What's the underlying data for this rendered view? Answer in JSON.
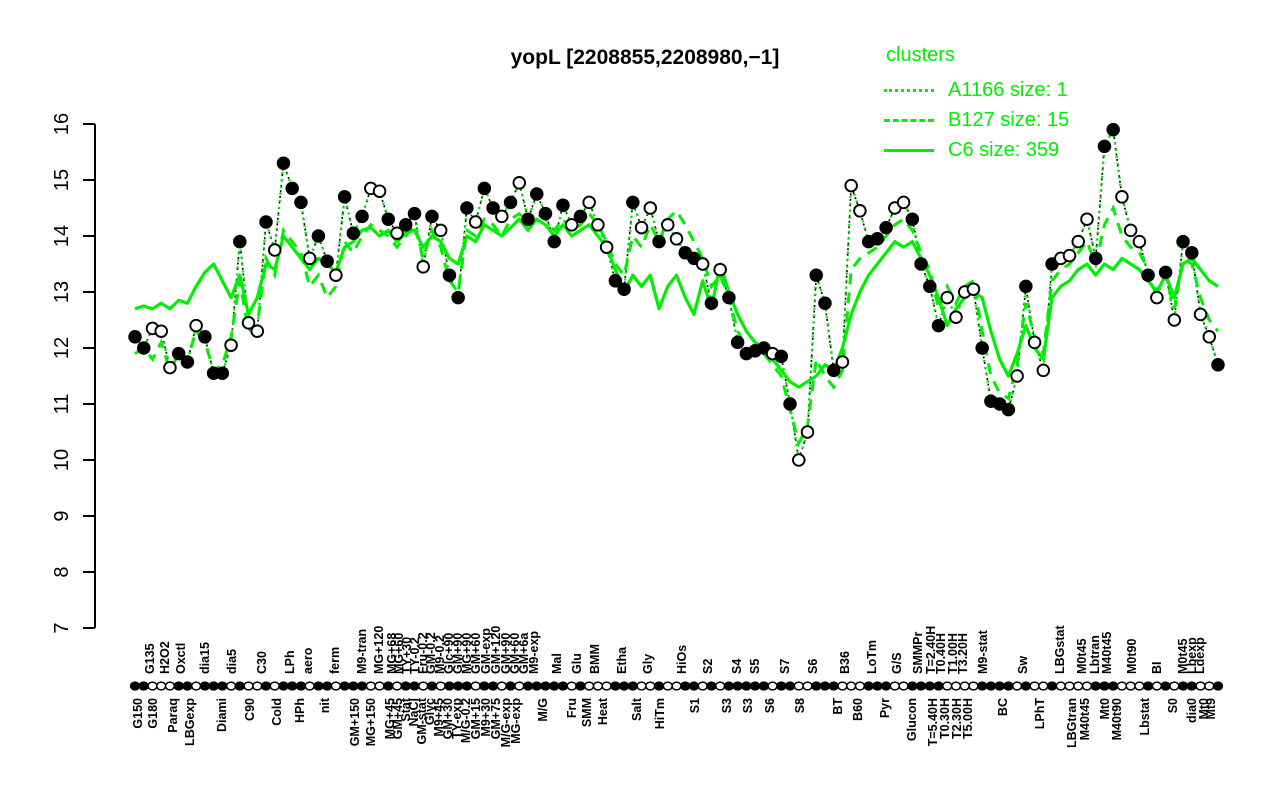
{
  "title": "yopL [2208855,2208980,−1]",
  "colors": {
    "cluster_green": "#00EE00",
    "point_fill": "#000000",
    "point_open": "#ffffff",
    "axis": "#000000"
  },
  "legend": {
    "title": "clusters",
    "items": [
      {
        "label": "A1166 size: 1",
        "style": "dotted"
      },
      {
        "label": "B127 size: 15",
        "style": "dashed"
      },
      {
        "label": "C6 size: 359",
        "style": "solid"
      }
    ]
  },
  "chart_data": {
    "type": "line",
    "title": "yopL [2208855,2208980,−1]",
    "ylim": [
      7,
      16
    ],
    "yticks": [
      7,
      8,
      9,
      10,
      11,
      12,
      13,
      14,
      15,
      16
    ],
    "grid": false,
    "legend_position": "top-right",
    "n_points": 125,
    "series": [
      {
        "name": "yopL expression profile",
        "role": "points",
        "marker": "circle",
        "line": "black-dotted",
        "values": [
          12.2,
          12.0,
          12.35,
          12.3,
          11.65,
          11.9,
          11.75,
          12.4,
          12.2,
          11.55,
          11.55,
          12.05,
          13.9,
          12.45,
          12.3,
          14.25,
          13.75,
          15.3,
          14.85,
          14.6,
          13.6,
          14.0,
          13.55,
          13.3,
          14.7,
          14.05,
          14.35,
          14.85,
          14.8,
          14.3,
          14.05,
          14.2,
          14.4,
          13.45,
          14.35,
          14.1,
          13.3,
          12.9,
          14.5,
          14.25,
          14.85,
          14.5,
          14.35,
          14.6,
          14.95,
          14.3,
          14.75,
          14.4,
          13.9,
          14.55,
          14.2,
          14.35,
          14.6,
          14.2,
          13.8,
          13.2,
          13.05,
          14.6,
          14.15,
          14.5,
          13.9,
          14.2,
          13.95,
          13.7,
          13.6,
          13.5,
          12.8,
          13.4,
          12.9,
          12.1,
          11.9,
          11.95,
          12.0,
          11.9,
          11.85,
          11.0,
          10.0,
          10.5,
          13.3,
          12.8,
          11.6,
          11.75,
          14.9,
          14.45,
          13.9,
          13.95,
          14.15,
          14.5,
          14.6,
          14.3,
          13.5,
          13.1,
          12.4,
          12.9,
          12.55,
          13.0,
          13.05,
          12.0,
          11.05,
          11.0,
          10.9,
          11.5,
          13.1,
          12.1,
          11.6,
          13.5,
          13.6,
          13.65,
          13.9,
          14.3,
          13.6,
          15.6,
          15.9,
          14.7,
          14.1,
          13.9,
          13.3,
          12.9,
          13.35,
          12.5,
          13.9,
          13.7,
          12.6,
          12.2,
          11.7
        ],
        "filled": [
          1,
          1,
          0,
          0,
          0,
          1,
          1,
          0,
          1,
          1,
          1,
          0,
          1,
          0,
          0,
          1,
          0,
          1,
          1,
          1,
          0,
          1,
          1,
          0,
          1,
          1,
          1,
          0,
          0,
          1,
          0,
          1,
          1,
          0,
          1,
          0,
          1,
          1,
          1,
          0,
          1,
          1,
          0,
          1,
          0,
          1,
          1,
          1,
          1,
          1,
          0,
          1,
          0,
          0,
          0,
          1,
          1,
          1,
          0,
          0,
          1,
          0,
          0,
          1,
          1,
          0,
          1,
          0,
          1,
          1,
          1,
          1,
          1,
          0,
          1,
          1,
          0,
          0,
          1,
          1,
          1,
          0,
          0,
          0,
          1,
          1,
          1,
          0,
          0,
          1,
          1,
          1,
          1,
          0,
          0,
          0,
          0,
          1,
          1,
          1,
          1,
          0,
          1,
          0,
          0,
          1,
          0,
          0,
          0,
          0,
          1,
          1,
          1,
          0,
          0,
          0,
          1,
          0,
          1,
          0,
          1,
          1,
          0,
          0,
          1
        ]
      },
      {
        "name": "A1166",
        "cluster_size": 1,
        "role": "cluster-line",
        "style": "dotted",
        "values_ref": "points"
      },
      {
        "name": "B127",
        "cluster_size": 15,
        "role": "cluster-line",
        "style": "dashed",
        "values": [
          11.9,
          12.0,
          11.8,
          12.1,
          11.6,
          11.9,
          11.8,
          12.3,
          12.1,
          11.6,
          11.7,
          12.2,
          13.2,
          12.3,
          12.4,
          13.6,
          13.3,
          14.1,
          13.9,
          13.7,
          13.1,
          13.3,
          12.9,
          13.1,
          13.9,
          13.7,
          14.0,
          14.2,
          14.1,
          14.0,
          13.8,
          14.0,
          14.2,
          13.6,
          14.1,
          13.8,
          13.2,
          13.0,
          14.1,
          14.0,
          14.3,
          14.2,
          14.0,
          14.3,
          14.4,
          14.2,
          14.4,
          14.3,
          14.1,
          14.3,
          14.1,
          14.2,
          14.4,
          14.2,
          13.9,
          13.5,
          13.3,
          14.0,
          13.8,
          14.2,
          13.9,
          14.3,
          14.45,
          14.2,
          13.9,
          13.6,
          13.1,
          13.3,
          12.9,
          12.3,
          12.0,
          11.9,
          11.9,
          11.7,
          11.5,
          10.9,
          10.3,
          10.6,
          11.8,
          11.5,
          11.3,
          11.6,
          13.4,
          13.6,
          13.7,
          13.8,
          14.0,
          14.2,
          14.3,
          14.1,
          13.7,
          13.4,
          12.7,
          13.1,
          12.8,
          13.1,
          13.2,
          12.3,
          11.5,
          11.2,
          11.1,
          11.7,
          12.8,
          12.2,
          11.9,
          13.2,
          13.4,
          13.5,
          13.7,
          13.9,
          13.5,
          14.2,
          14.5,
          14.0,
          13.8,
          13.7,
          13.4,
          13.0,
          13.3,
          12.7,
          13.6,
          13.5,
          12.9,
          12.5,
          12.3
        ]
      },
      {
        "name": "C6",
        "cluster_size": 359,
        "role": "cluster-line",
        "style": "solid",
        "values": [
          12.7,
          12.75,
          12.7,
          12.8,
          12.7,
          12.85,
          12.8,
          13.1,
          13.35,
          13.5,
          13.2,
          12.9,
          13.3,
          12.6,
          12.9,
          13.5,
          13.4,
          14.0,
          13.8,
          13.6,
          13.4,
          13.6,
          13.5,
          13.35,
          13.8,
          13.9,
          14.1,
          14.15,
          14.0,
          14.1,
          13.9,
          14.05,
          14.1,
          13.8,
          14.0,
          13.9,
          13.6,
          13.5,
          14.0,
          13.9,
          14.2,
          14.1,
          14.0,
          14.15,
          14.3,
          14.1,
          14.3,
          14.2,
          14.0,
          14.2,
          14.0,
          14.1,
          14.2,
          14.0,
          13.8,
          13.4,
          13.0,
          13.3,
          13.1,
          13.3,
          12.7,
          13.1,
          13.3,
          12.9,
          12.6,
          13.2,
          12.7,
          13.5,
          13.0,
          12.6,
          12.3,
          12.1,
          12.0,
          11.8,
          11.6,
          11.4,
          11.3,
          11.4,
          11.5,
          11.7,
          11.6,
          12.0,
          12.6,
          13.0,
          13.3,
          13.5,
          13.7,
          13.9,
          13.8,
          13.9,
          13.6,
          13.3,
          12.9,
          12.4,
          12.7,
          12.9,
          13.0,
          12.9,
          12.3,
          11.8,
          11.5,
          11.9,
          12.4,
          12.0,
          11.8,
          12.9,
          13.1,
          13.2,
          13.4,
          13.5,
          13.3,
          13.5,
          13.4,
          13.6,
          13.5,
          13.4,
          13.2,
          13.0,
          13.3,
          12.9,
          13.5,
          13.6,
          13.4,
          13.2,
          13.1
        ]
      }
    ],
    "x_labels_top": [
      [
        150,
        "G135"
      ],
      [
        165,
        "H2O2"
      ],
      [
        181,
        "Oxctl"
      ],
      [
        205,
        "dia15"
      ],
      [
        232,
        "dia5"
      ],
      [
        262,
        "C30"
      ],
      [
        290,
        "LPh"
      ],
      [
        308,
        "aero"
      ],
      [
        335,
        "ferm"
      ],
      [
        362,
        "M9-tran"
      ],
      [
        379,
        "MG+120"
      ],
      [
        392,
        "MG+68"
      ],
      [
        399,
        "MG+60"
      ],
      [
        407,
        "TY+30"
      ],
      [
        415,
        "TY-0.2"
      ],
      [
        423,
        "Fru-0.2"
      ],
      [
        431,
        "GM-0.2"
      ],
      [
        440,
        "M9-0.2"
      ],
      [
        449,
        "Glc+90"
      ],
      [
        458,
        "GM+90"
      ],
      [
        467,
        "MG+90"
      ],
      [
        476,
        "GM+60"
      ],
      [
        486,
        "GM-exp"
      ],
      [
        496,
        "GM+120"
      ],
      [
        506,
        "GM+90"
      ],
      [
        515,
        "GM+60"
      ],
      [
        524,
        "GM+6a"
      ],
      [
        534,
        "M9-exp"
      ],
      [
        557,
        "Mal"
      ],
      [
        577,
        "Glu"
      ],
      [
        595,
        "BMM"
      ],
      [
        622,
        "Etha"
      ],
      [
        648,
        "Gly"
      ],
      [
        682,
        "HiOs"
      ],
      [
        708,
        "S2"
      ],
      [
        737,
        "S4"
      ],
      [
        755,
        "S5"
      ],
      [
        785,
        "S7"
      ],
      [
        813,
        "S6"
      ],
      [
        845,
        "B36"
      ],
      [
        872,
        "LoTm"
      ],
      [
        897,
        "G/S"
      ],
      [
        918,
        "SMMPr"
      ],
      [
        931,
        "T=2.40H"
      ],
      [
        941,
        "T0.40H"
      ],
      [
        953,
        "T1.00H"
      ],
      [
        963,
        "T3.20H"
      ],
      [
        983,
        "M9-stat"
      ],
      [
        1023,
        "Sw"
      ],
      [
        1060,
        "LBGstat"
      ],
      [
        1082,
        "M0t45"
      ],
      [
        1095,
        "Lbtran"
      ],
      [
        1107,
        "M40t45"
      ],
      [
        1132,
        "M0t90"
      ],
      [
        1157,
        "BI"
      ],
      [
        1183,
        "M0t45"
      ],
      [
        1192,
        "Lbexp"
      ],
      [
        1200,
        "Ldexp"
      ]
    ],
    "x_labels_bottom": [
      [
        138,
        "G150"
      ],
      [
        153,
        "G180"
      ],
      [
        173,
        "Paraq"
      ],
      [
        190,
        "LBGexp"
      ],
      [
        222,
        "Diami"
      ],
      [
        250,
        "C90"
      ],
      [
        277,
        "Cold"
      ],
      [
        300,
        "HPh"
      ],
      [
        325,
        "nit"
      ],
      [
        355,
        "GM+150"
      ],
      [
        371,
        "MG+150"
      ],
      [
        390,
        "MG+45"
      ],
      [
        398,
        "GM+45"
      ],
      [
        406,
        "Stat"
      ],
      [
        414,
        "NaCl"
      ],
      [
        422,
        "GM-stat"
      ],
      [
        430,
        "Glyc"
      ],
      [
        439,
        "M9+45"
      ],
      [
        448,
        "GM+30"
      ],
      [
        457,
        "TY-exp"
      ],
      [
        466,
        "M/G-0.2"
      ],
      [
        476,
        "GM+15"
      ],
      [
        486,
        "M9+30"
      ],
      [
        496,
        "GM+75"
      ],
      [
        506,
        "M/G-exp"
      ],
      [
        516,
        "MG-exp"
      ],
      [
        543,
        "M/G"
      ],
      [
        572,
        "Fru"
      ],
      [
        587,
        "SMM"
      ],
      [
        603,
        "Heat"
      ],
      [
        637,
        "Salt"
      ],
      [
        660,
        "HiTm"
      ],
      [
        695,
        "S1"
      ],
      [
        727,
        "S3"
      ],
      [
        748,
        "S3"
      ],
      [
        770,
        "S6"
      ],
      [
        800,
        "S8"
      ],
      [
        838,
        "BT"
      ],
      [
        858,
        "B60"
      ],
      [
        885,
        "Pyr"
      ],
      [
        912,
        "Glucon"
      ],
      [
        933,
        "T=5.40H"
      ],
      [
        945,
        "T0.30H"
      ],
      [
        957,
        "T2.30H"
      ],
      [
        968,
        "T5.00H"
      ],
      [
        1003,
        "BC"
      ],
      [
        1040,
        "LPhT"
      ],
      [
        1072,
        "LBGtran"
      ],
      [
        1085,
        "M40t45"
      ],
      [
        1105,
        "Mt0"
      ],
      [
        1117,
        "M40t90"
      ],
      [
        1145,
        "Lbstat"
      ],
      [
        1173,
        "S0"
      ],
      [
        1192,
        "dia0"
      ],
      [
        1204,
        "Mt0"
      ],
      [
        1211,
        "Mt9"
      ]
    ]
  }
}
